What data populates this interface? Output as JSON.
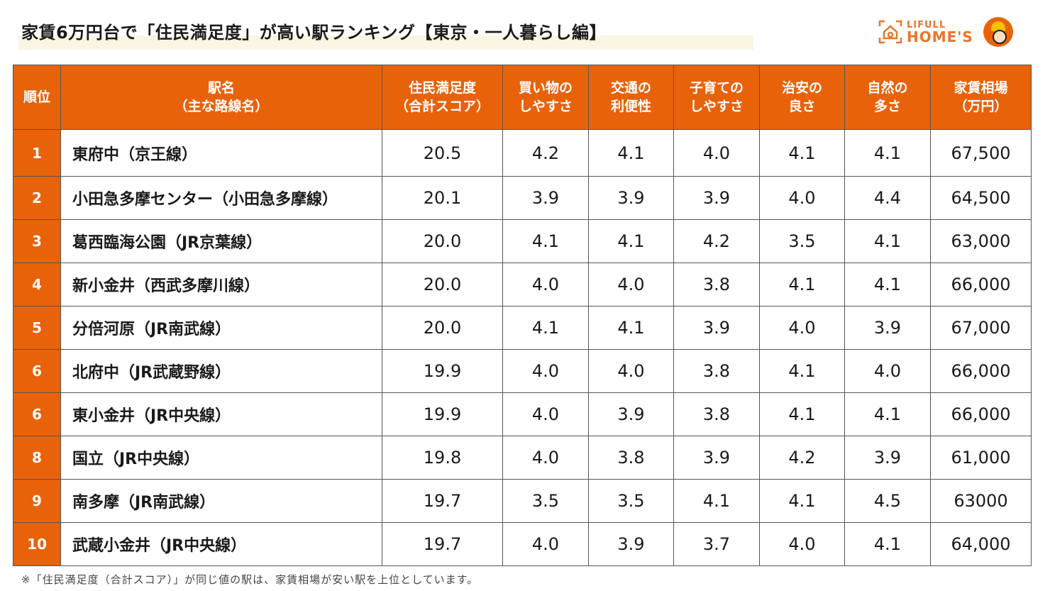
{
  "title": "家賃6万円台で「住民満足度」が高い駅ランキング【東京・一人暮らし編】",
  "logo": {
    "small": "LIFULL",
    "big": "HOME'S"
  },
  "colors": {
    "accent": "#e8620a",
    "border": "#555555"
  },
  "headers": [
    [
      "順位"
    ],
    [
      "駅名",
      "（主な路線名）"
    ],
    [
      "住民満足度",
      "（合計スコア）"
    ],
    [
      "買い物の",
      "しやすさ"
    ],
    [
      "交通の",
      "利便性"
    ],
    [
      "子育ての",
      "しやすさ"
    ],
    [
      "治安の",
      "良さ"
    ],
    [
      "自然の",
      "多さ"
    ],
    [
      "家賃相場",
      "（万円）"
    ]
  ],
  "rows": [
    [
      "1",
      "東府中（京王線）",
      "20.5",
      "4.2",
      "4.1",
      "4.0",
      "4.1",
      "4.1",
      "67,500"
    ],
    [
      "2",
      "小田急多摩センター（小田急多摩線）",
      "20.1",
      "3.9",
      "3.9",
      "3.9",
      "4.0",
      "4.4",
      "64,500"
    ],
    [
      "3",
      "葛西臨海公園（JR京葉線）",
      "20.0",
      "4.1",
      "4.1",
      "4.2",
      "3.5",
      "4.1",
      "63,000"
    ],
    [
      "4",
      "新小金井（西武多摩川線）",
      "20.0",
      "4.0",
      "4.0",
      "3.8",
      "4.1",
      "4.1",
      "66,000"
    ],
    [
      "5",
      "分倍河原（JR南武線）",
      "20.0",
      "4.1",
      "4.1",
      "3.9",
      "4.0",
      "3.9",
      "67,000"
    ],
    [
      "6",
      "北府中（JR武蔵野線）",
      "19.9",
      "4.0",
      "4.0",
      "3.8",
      "4.1",
      "4.0",
      "66,000"
    ],
    [
      "6",
      "東小金井（JR中央線）",
      "19.9",
      "4.0",
      "3.9",
      "3.8",
      "4.1",
      "4.1",
      "66,000"
    ],
    [
      "8",
      "国立（JR中央線）",
      "19.8",
      "4.0",
      "3.8",
      "3.9",
      "4.2",
      "3.9",
      "61,000"
    ],
    [
      "9",
      "南多摩（JR南武線）",
      "19.7",
      "3.5",
      "3.5",
      "4.1",
      "4.1",
      "4.5",
      "63000"
    ],
    [
      "10",
      "武蔵小金井（JR中央線）",
      "19.7",
      "4.0",
      "3.9",
      "3.7",
      "4.0",
      "4.1",
      "64,000"
    ]
  ],
  "footnote": "※「住民満足度（合計スコア）」が同じ値の駅は、家賃相場が安い駅を上位としています。"
}
